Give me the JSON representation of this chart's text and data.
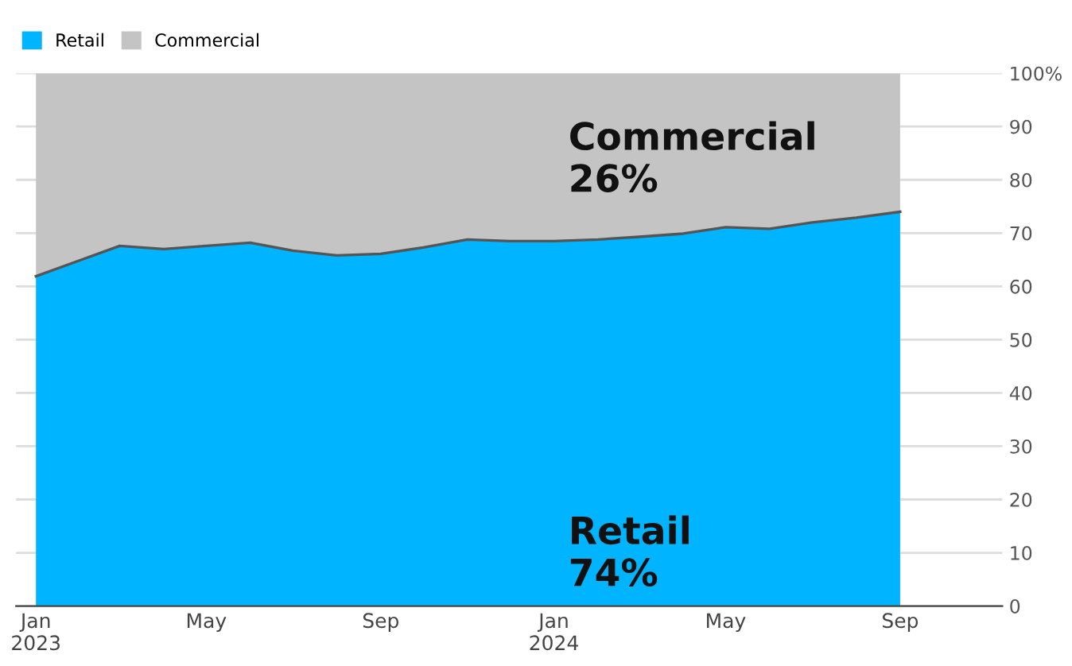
{
  "chart_data": {
    "type": "area",
    "stacked": true,
    "x": [
      "2023-01",
      "2023-02",
      "2023-03",
      "2023-04",
      "2023-05",
      "2023-06",
      "2023-07",
      "2023-08",
      "2023-09",
      "2023-10",
      "2023-11",
      "2023-12",
      "2024-01",
      "2024-02",
      "2024-03",
      "2024-04",
      "2024-05",
      "2024-06",
      "2024-07",
      "2024-08",
      "2024-09"
    ],
    "series": [
      {
        "name": "Retail",
        "color": "#00b4ff",
        "values": [
          61.9,
          64.9,
          67.6,
          67.0,
          67.6,
          68.2,
          66.7,
          65.8,
          66.1,
          67.3,
          68.8,
          68.5,
          68.5,
          68.8,
          69.3,
          69.9,
          71.1,
          70.8,
          72.0,
          72.9,
          74.0
        ]
      },
      {
        "name": "Commercial",
        "color": "#c4c4c4",
        "values": [
          38.1,
          35.1,
          32.4,
          33.0,
          32.4,
          31.8,
          33.3,
          34.2,
          33.9,
          32.7,
          31.2,
          31.5,
          31.5,
          31.2,
          30.7,
          30.1,
          28.9,
          29.2,
          28.0,
          27.1,
          26.0
        ]
      }
    ],
    "xlim": [
      "2022-12-18",
      "2024-11-12"
    ],
    "xticks": [
      {
        "value": "2023-01",
        "label": "Jan\n2023"
      },
      {
        "value": "2023-05",
        "label": "May"
      },
      {
        "value": "2023-09",
        "label": "Sep"
      },
      {
        "value": "2024-01",
        "label": "Jan\n2024"
      },
      {
        "value": "2024-05",
        "label": "May"
      },
      {
        "value": "2024-09",
        "label": "Sep"
      }
    ],
    "ylim": [
      0,
      100
    ],
    "yticks": [
      0,
      10,
      20,
      30,
      40,
      50,
      60,
      70,
      80,
      90,
      {
        "value": 100,
        "label": "100%"
      }
    ],
    "grid": "y",
    "legend": "top left",
    "annotations": [
      "Commercial\n26%",
      "Retail\n74%"
    ]
  }
}
